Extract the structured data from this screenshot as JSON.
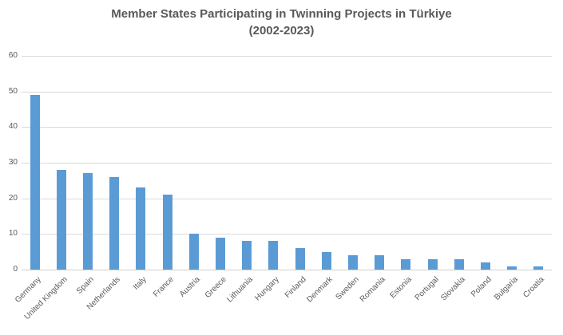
{
  "title": {
    "line1": "Member States Participating in Twinning Projects in Türkiye",
    "line2": "(2002-2023)"
  },
  "chart_data": {
    "type": "bar",
    "title": "Member States Participating in Twinning Projects in Türkiye (2002-2023)",
    "categories": [
      "Germany",
      "United Kingdom",
      "Spain",
      "Netherlands",
      "Italy",
      "France",
      "Austria",
      "Greece",
      "Lithuania",
      "Hungary",
      "Finland",
      "Denmark",
      "Sweden",
      "Romania",
      "Estonia",
      "Portugal",
      "Slovakia",
      "Poland",
      "Bulgaria",
      "Croatia"
    ],
    "values": [
      49,
      28,
      27,
      26,
      23,
      21,
      10,
      9,
      8,
      8,
      6,
      5,
      4,
      4,
      3,
      3,
      3,
      2,
      1,
      1
    ],
    "xlabel": "",
    "ylabel": "",
    "ylim": [
      0,
      60
    ],
    "yticks": [
      0,
      10,
      20,
      30,
      40,
      50,
      60
    ],
    "grid": "horizontal",
    "legend": "none",
    "colors": {
      "bar": "#5B9BD5",
      "gridline": "#D9D9D9",
      "axis_line": "#D0D0D0",
      "tick_label": "#595959",
      "title": "#595959"
    }
  }
}
